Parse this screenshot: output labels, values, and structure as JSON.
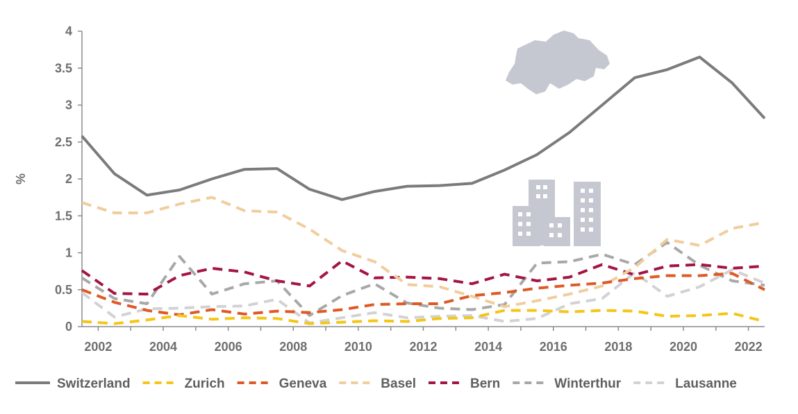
{
  "chart_data": {
    "type": "line",
    "title": "",
    "xlabel": "",
    "ylabel": "%",
    "ylim": [
      0,
      4
    ],
    "xlim": [
      2001.5,
      2022.5
    ],
    "y_ticks": [
      "0",
      "0.5",
      "1",
      "1.5",
      "2",
      "2.5",
      "3",
      "3.5",
      "4"
    ],
    "x_ticks": [
      "2002",
      "2004",
      "2006",
      "2008",
      "2010",
      "2012",
      "2014",
      "2016",
      "2018",
      "2020",
      "2022"
    ],
    "x": [
      2001.5,
      2002.5,
      2003.5,
      2004.5,
      2005.5,
      2006.5,
      2007.5,
      2008.5,
      2009.5,
      2010.5,
      2011.5,
      2012.5,
      2013.5,
      2014.5,
      2015.5,
      2016.5,
      2017.5,
      2018.5,
      2019.5,
      2020.5,
      2021.5,
      2022.5
    ],
    "legend_position": "bottom",
    "grid": false,
    "series": [
      {
        "name": "Switzerland",
        "color": "#7b7b7b",
        "dash": "solid",
        "values": [
          2.58,
          2.07,
          1.78,
          1.85,
          2.0,
          2.13,
          2.14,
          1.86,
          1.72,
          1.83,
          1.9,
          1.91,
          1.94,
          2.12,
          2.33,
          2.63,
          3.0,
          3.37,
          3.48,
          3.65,
          3.3,
          2.82
        ]
      },
      {
        "name": "Zurich",
        "color": "#f5c518",
        "dash": "dashed",
        "values": [
          0.07,
          0.04,
          0.09,
          0.15,
          0.1,
          0.12,
          0.11,
          0.04,
          0.06,
          0.08,
          0.07,
          0.11,
          0.12,
          0.22,
          0.22,
          0.2,
          0.22,
          0.21,
          0.14,
          0.15,
          0.18,
          0.07
        ]
      },
      {
        "name": "Geneva",
        "color": "#dd5a27",
        "dash": "dashed",
        "values": [
          0.5,
          0.33,
          0.22,
          0.16,
          0.23,
          0.17,
          0.21,
          0.19,
          0.23,
          0.3,
          0.31,
          0.31,
          0.42,
          0.46,
          0.52,
          0.56,
          0.59,
          0.65,
          0.69,
          0.69,
          0.72,
          0.5
        ]
      },
      {
        "name": "Basel",
        "color": "#f0cd9c",
        "dash": "dashed",
        "values": [
          1.68,
          1.54,
          1.54,
          1.66,
          1.75,
          1.57,
          1.55,
          1.32,
          1.03,
          0.88,
          0.57,
          0.54,
          0.41,
          0.27,
          0.35,
          0.44,
          0.55,
          0.8,
          1.18,
          1.1,
          1.33,
          1.41
        ]
      },
      {
        "name": "Bern",
        "color": "#a31545",
        "dash": "dashed",
        "values": [
          0.76,
          0.45,
          0.44,
          0.69,
          0.79,
          0.74,
          0.62,
          0.55,
          0.89,
          0.66,
          0.67,
          0.65,
          0.58,
          0.71,
          0.62,
          0.67,
          0.84,
          0.7,
          0.82,
          0.84,
          0.79,
          0.82
        ]
      },
      {
        "name": "Winterthur",
        "color": "#a8a8a8",
        "dash": "dashed",
        "values": [
          0.66,
          0.38,
          0.31,
          0.95,
          0.44,
          0.58,
          0.62,
          0.15,
          0.42,
          0.58,
          0.32,
          0.25,
          0.23,
          0.3,
          0.86,
          0.88,
          0.98,
          0.84,
          1.14,
          0.83,
          0.62,
          0.56
        ]
      },
      {
        "name": "Lausanne",
        "color": "#d2d2d4",
        "dash": "dashed",
        "values": [
          0.46,
          0.13,
          0.24,
          0.25,
          0.27,
          0.28,
          0.37,
          0.05,
          0.12,
          0.19,
          0.12,
          0.14,
          0.15,
          0.07,
          0.11,
          0.31,
          0.38,
          0.73,
          0.41,
          0.54,
          0.77,
          0.59
        ]
      }
    ],
    "decor": {
      "map_icon": "switzerland-map-icon",
      "building_icon": "buildings-icon",
      "icon_color": "#c6c8d1"
    }
  }
}
